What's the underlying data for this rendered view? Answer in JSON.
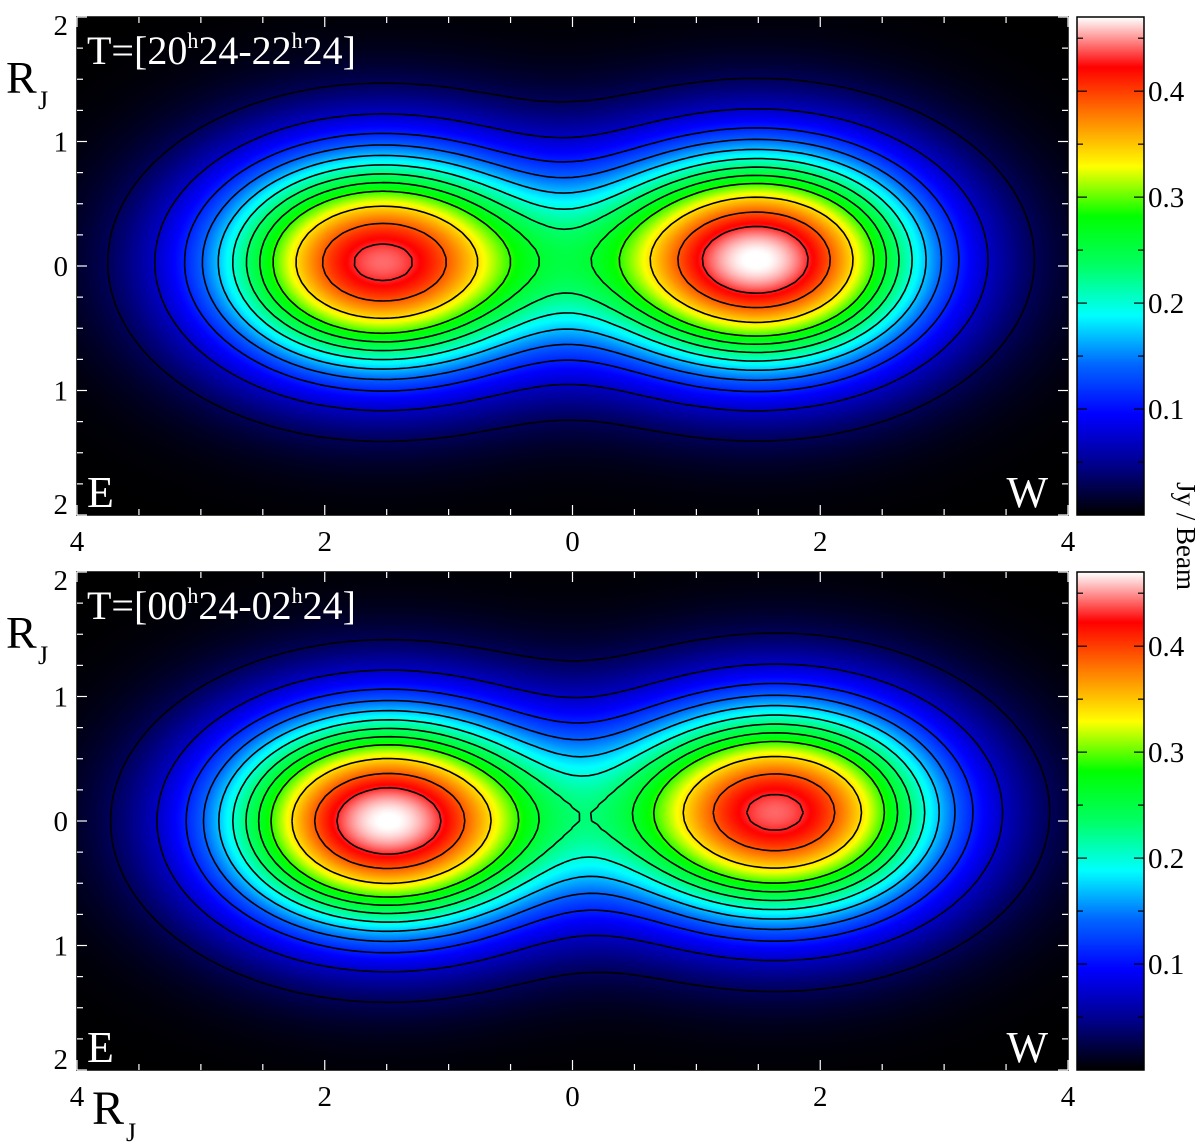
{
  "chart_data": [
    {
      "type": "heatmap",
      "title": "T=[20h24-22h24]",
      "title_parts": {
        "prefix": "T=[20",
        "sup1": "h",
        "mid": "24-22",
        "sup2": "h",
        "suffix": "24]"
      },
      "x_ticks": [
        "4",
        "2",
        "0",
        "2",
        "4"
      ],
      "x_tick_values": [
        -4,
        -2,
        0,
        2,
        4
      ],
      "y_ticks": [
        "2",
        "1",
        "0",
        "1",
        "2"
      ],
      "y_tick_values": [
        2,
        1,
        0,
        -1,
        -2
      ],
      "xlim": [
        -4,
        4
      ],
      "ylim": [
        -2,
        2
      ],
      "ylabel": "R",
      "ylabel_sub": "J",
      "corner_labels": {
        "left": "E",
        "right": "W"
      },
      "colorbar_ticks": [
        "0.1",
        "0.2",
        "0.3",
        "0.4"
      ],
      "colorbar_tick_values": [
        0.1,
        0.2,
        0.3,
        0.4
      ],
      "colorbar_range": [
        0.0,
        0.47
      ],
      "lobes": [
        {
          "x": -1.55,
          "y": 0.03,
          "peak": 0.44
        },
        {
          "x": 1.5,
          "y": 0.05,
          "peak": 0.47
        }
      ],
      "contour_levels": [
        0.03,
        0.07,
        0.11,
        0.14,
        0.17,
        0.2,
        0.23,
        0.26,
        0.29,
        0.34,
        0.39,
        0.43
      ]
    },
    {
      "type": "heatmap",
      "title": "T=[00h24-02h24]",
      "title_parts": {
        "prefix": "T=[00",
        "sup1": "h",
        "mid": "24-02",
        "sup2": "h",
        "suffix": "24]"
      },
      "x_ticks": [
        "4",
        "2",
        "0",
        "2",
        "4"
      ],
      "x_tick_values": [
        -4,
        -2,
        0,
        2,
        4
      ],
      "y_ticks": [
        "2",
        "1",
        "0",
        "1",
        "2"
      ],
      "y_tick_values": [
        2,
        1,
        0,
        -1,
        -2
      ],
      "xlim": [
        -4,
        4
      ],
      "ylim": [
        -2,
        2
      ],
      "ylabel": "R",
      "ylabel_sub": "J",
      "xlabel": "R",
      "xlabel_sub": "J",
      "corner_labels": {
        "left": "E",
        "right": "W"
      },
      "colorbar_ticks": [
        "0.1",
        "0.2",
        "0.3",
        "0.4"
      ],
      "colorbar_tick_values": [
        0.1,
        0.2,
        0.3,
        0.4
      ],
      "colorbar_range": [
        0.0,
        0.47
      ],
      "lobes": [
        {
          "x": -1.5,
          "y": 0.0,
          "peak": 0.47
        },
        {
          "x": 1.65,
          "y": 0.07,
          "peak": 0.44
        }
      ],
      "contour_levels": [
        0.03,
        0.07,
        0.11,
        0.14,
        0.17,
        0.2,
        0.23,
        0.26,
        0.29,
        0.34,
        0.39,
        0.43
      ]
    }
  ],
  "colorbar_label": "Jy / Beam",
  "colormap": [
    "#000000",
    "#00008c",
    "#0000ff",
    "#0064ff",
    "#00ffff",
    "#00ff64",
    "#00ff00",
    "#ffff00",
    "#ff8000",
    "#ff0000",
    "#ffffff"
  ]
}
